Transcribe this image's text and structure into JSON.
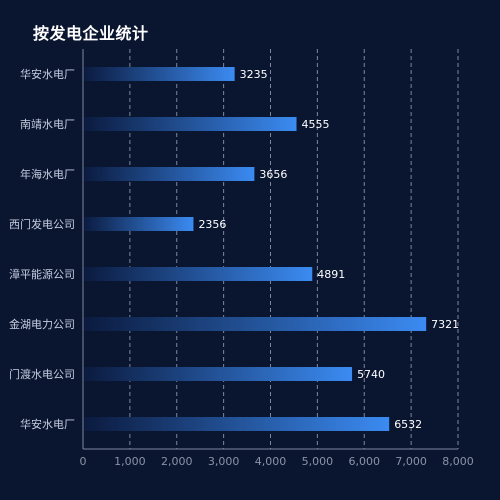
{
  "chart_data": {
    "type": "bar",
    "orientation": "horizontal",
    "title": "按发电企业统计",
    "categories": [
      "华安水电厂",
      "南靖水电厂",
      "年海水电厂",
      "西门发电公司",
      "漳平能源公司",
      "金湖电力公司",
      "门渡水电公司",
      "华安水电厂"
    ],
    "values": [
      3235,
      4555,
      3656,
      2356,
      4891,
      7321,
      5740,
      6532
    ],
    "xlim": [
      0,
      8000
    ],
    "xticks": [
      0,
      1000,
      2000,
      3000,
      4000,
      5000,
      6000,
      7000,
      8000
    ],
    "xtick_labels": [
      "0",
      "1,000",
      "2,000",
      "3,000",
      "4,000",
      "5,000",
      "6,000",
      "7,000",
      "8,000"
    ],
    "grid": "vertical dashed",
    "legend": "none",
    "colors": {
      "background": "#0a1530",
      "bar_start": "#0b1a3e",
      "bar_end": "#3b8bf2",
      "grid": "#7d879c",
      "title": "#ffffff"
    }
  }
}
